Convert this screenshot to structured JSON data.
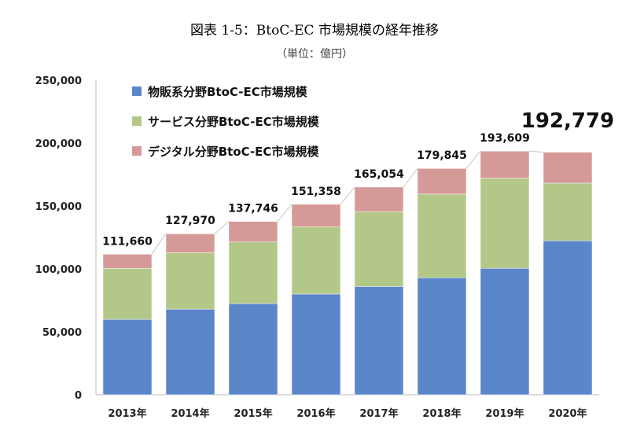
{
  "title": "図表 1-5：BtoC-EC 市場規模の経年推移",
  "subtitle": "（単位：億円）",
  "chart_data": {
    "type": "bar",
    "stacked": true,
    "categories": [
      "2013年",
      "2014年",
      "2015年",
      "2016年",
      "2017年",
      "2018年",
      "2019年",
      "2020年"
    ],
    "series": [
      {
        "name": "物販系分野BtoC-EC市場規模",
        "color": "#5b86c9",
        "values": [
          59931,
          68043,
          72398,
          80043,
          86008,
          92992,
          100515,
          122333
        ]
      },
      {
        "name": "サービス分野BtoC-EC市場規模",
        "color": "#b3c888",
        "values": [
          40493,
          44816,
          49014,
          53532,
          59568,
          66471,
          71672,
          45832
        ]
      },
      {
        "name": "デジタル分野BtoC-EC市場規模",
        "color": "#d59a98",
        "values": [
          11236,
          15111,
          16334,
          17782,
          19478,
          20382,
          21422,
          24614
        ]
      }
    ],
    "totals": [
      "111,660",
      "127,970",
      "137,746",
      "151,358",
      "165,054",
      "179,845",
      "193,609",
      "192,779"
    ],
    "y_ticks": [
      "0",
      "50,000",
      "100,000",
      "150,000",
      "200,000",
      "250,000"
    ],
    "ylim": [
      0,
      250000
    ],
    "legend_position": "top-left",
    "grid": false
  }
}
